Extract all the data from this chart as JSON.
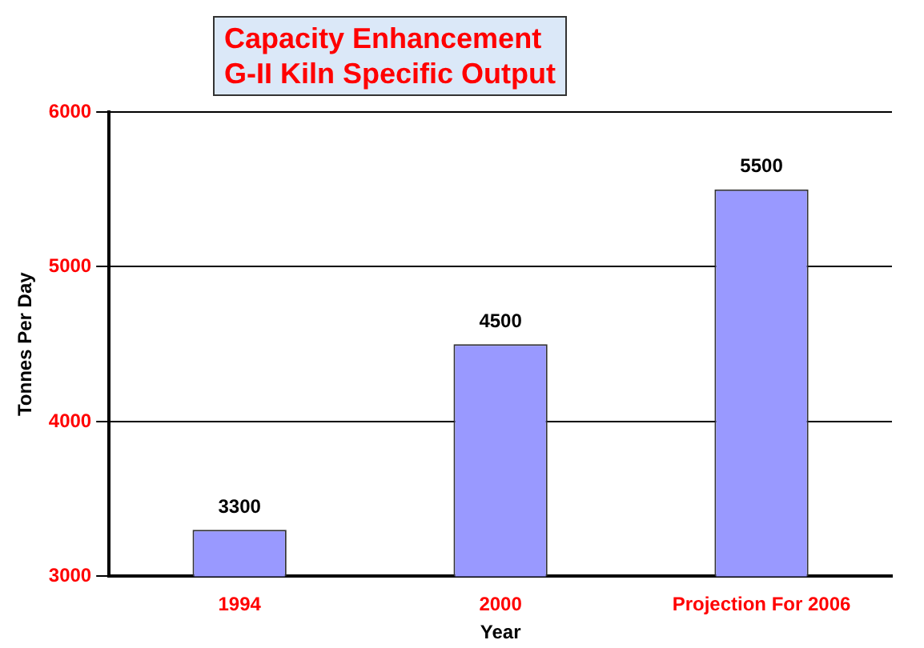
{
  "chart_data": {
    "type": "bar",
    "title": "Capacity  Enhancement",
    "subtitle": "G-II Kiln Specific Output",
    "xlabel": "Year",
    "ylabel": "Tonnes Per Day",
    "categories": [
      "1994",
      "2000",
      "Projection For 2006"
    ],
    "values": [
      3300,
      4500,
      5500
    ],
    "color": "#9999ff",
    "ylim": [
      3000,
      6000
    ],
    "yticks": [
      3000,
      4000,
      5000,
      6000
    ],
    "grid": "y",
    "data_labels": true
  }
}
